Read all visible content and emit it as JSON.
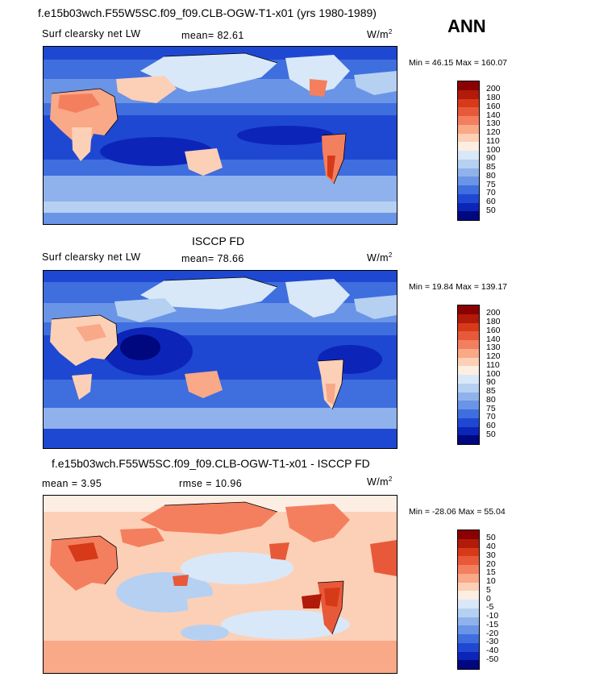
{
  "case_title": "f.e15b03wch.F55W5SC.f09_f09.CLB-OGW-T1-x01 (yrs 1980-1989)",
  "season": "ANN",
  "panels": [
    {
      "id": "model",
      "header": "",
      "variable": "Surf clearsky net LW",
      "stat_text": "mean=  82.61",
      "stat2_text": "",
      "units_base": "W/m",
      "units_exp": "2",
      "minmax_text": "Min =  46.15 Max = 160.07",
      "colorbar_labels": [
        "200",
        "180",
        "160",
        "140",
        "130",
        "120",
        "110",
        "100",
        "90",
        "85",
        "80",
        "75",
        "70",
        "60",
        "50"
      ],
      "colors": [
        "#8b0000",
        "#b21a0a",
        "#d63a19",
        "#e8593a",
        "#f47f5e",
        "#f9a888",
        "#fcd0b6",
        "#fdeee4",
        "#d8e8f8",
        "#b6d0f2",
        "#8fb2ec",
        "#6a94e6",
        "#3f6ede",
        "#1f48d2",
        "#0c25b8",
        "#000880"
      ]
    },
    {
      "id": "obs",
      "header": "ISCCP FD",
      "variable": "Surf clearsky net LW",
      "stat_text": "mean=  78.66",
      "stat2_text": "",
      "units_base": "W/m",
      "units_exp": "2",
      "minmax_text": "Min =  19.84 Max = 139.17",
      "colorbar_labels": [
        "200",
        "180",
        "160",
        "140",
        "130",
        "120",
        "110",
        "100",
        "90",
        "85",
        "80",
        "75",
        "70",
        "60",
        "50"
      ],
      "colors": [
        "#8b0000",
        "#b21a0a",
        "#d63a19",
        "#e8593a",
        "#f47f5e",
        "#f9a888",
        "#fcd0b6",
        "#fdeee4",
        "#d8e8f8",
        "#b6d0f2",
        "#8fb2ec",
        "#6a94e6",
        "#3f6ede",
        "#1f48d2",
        "#0c25b8",
        "#000880"
      ]
    },
    {
      "id": "diff",
      "header": "f.e15b03wch.F55W5SC.f09_f09.CLB-OGW-T1-x01 - ISCCP FD",
      "variable": "",
      "stat_text": "mean =   3.95",
      "stat2_text": "rmse =  10.96",
      "units_base": "W/m",
      "units_exp": "2",
      "minmax_text": "Min = -28.06 Max =  55.04",
      "colorbar_labels": [
        "50",
        "40",
        "30",
        "20",
        "15",
        "10",
        "5",
        "0",
        "-5",
        "-10",
        "-15",
        "-20",
        "-30",
        "-40",
        "-50"
      ],
      "colors": [
        "#8b0000",
        "#b21a0a",
        "#d63a19",
        "#e8593a",
        "#f47f5e",
        "#f9a888",
        "#fcd0b6",
        "#fdeee4",
        "#d8e8f8",
        "#b6d0f2",
        "#8fb2ec",
        "#6a94e6",
        "#3f6ede",
        "#1f48d2",
        "#0c25b8",
        "#000880"
      ]
    }
  ],
  "chart_data": [
    {
      "type": "heatmap",
      "title": "Surf clearsky net LW",
      "source": "f.e15b03wch.F55W5SC.f09_f09.CLB-OGW-T1-x01 (yrs 1980-1989)",
      "units": "W/m2",
      "mean": 82.61,
      "min": 46.15,
      "max": 160.07,
      "levels": [
        50,
        60,
        70,
        75,
        80,
        85,
        90,
        100,
        110,
        120,
        130,
        140,
        160,
        180,
        200
      ]
    },
    {
      "type": "heatmap",
      "title": "ISCCP FD",
      "subtitle": "Surf clearsky net LW",
      "units": "W/m2",
      "mean": 78.66,
      "min": 19.84,
      "max": 139.17,
      "levels": [
        50,
        60,
        70,
        75,
        80,
        85,
        90,
        100,
        110,
        120,
        130,
        140,
        160,
        180,
        200
      ]
    },
    {
      "type": "heatmap",
      "title": "f.e15b03wch.F55W5SC.f09_f09.CLB-OGW-T1-x01 - ISCCP FD",
      "units": "W/m2",
      "mean": 3.95,
      "rmse": 10.96,
      "min": -28.06,
      "max": 55.04,
      "levels": [
        -50,
        -40,
        -30,
        -20,
        -15,
        -10,
        -5,
        0,
        5,
        10,
        15,
        20,
        30,
        40,
        50
      ]
    }
  ]
}
